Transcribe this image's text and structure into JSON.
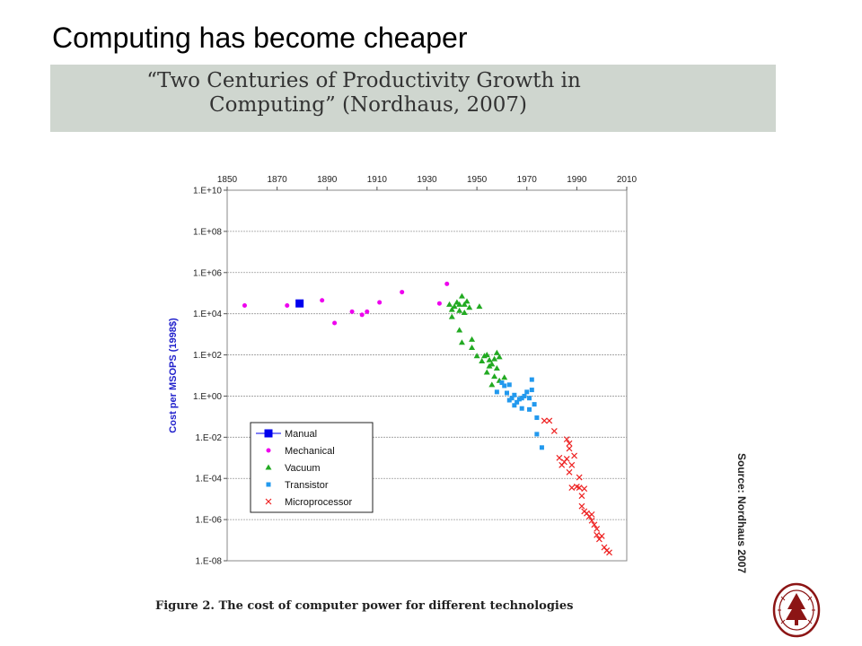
{
  "slide": {
    "title": "Computing has become cheaper",
    "banner_line1": "“Two Centuries of Productivity Growth in",
    "banner_line2": "Computing” (Nordhaus, 2007)",
    "caption_prefix": "Figure 2. ",
    "caption_text": "The cost of computer power for different technologies",
    "source": "Source: Nordhaus 2007",
    "logo": "stanford-seal-icon"
  },
  "chart_data": {
    "type": "scatter",
    "title": "",
    "xlabel": "",
    "ylabel": "Cost per MSOPS (1998$)",
    "xlim": [
      1850,
      2010
    ],
    "ylim_log10": [
      -8,
      10
    ],
    "y_scale": "log",
    "x_ticks": [
      "1850",
      "1870",
      "1890",
      "1910",
      "1930",
      "1950",
      "1970",
      "1990",
      "2010"
    ],
    "y_ticks": [
      "1.E+10",
      "1.E+08",
      "1.E+06",
      "1.E+04",
      "1.E+02",
      "1.E+00",
      "1.E-02",
      "1.E-04",
      "1.E-06",
      "1.E-08"
    ],
    "x_axis_position": "top",
    "grid": "horizontal",
    "legend_position": "bottom-left",
    "series": [
      {
        "name": "Manual",
        "marker": "square-line",
        "color": "#0000ee",
        "points": [
          [
            1879,
            4.5
          ]
        ]
      },
      {
        "name": "Mechanical",
        "marker": "circle",
        "color": "#ee00ee",
        "points": [
          [
            1857,
            4.4
          ],
          [
            1874,
            4.4
          ],
          [
            1888,
            4.65
          ],
          [
            1893,
            3.55
          ],
          [
            1900,
            4.1
          ],
          [
            1904,
            3.95
          ],
          [
            1906,
            4.1
          ],
          [
            1911,
            4.55
          ],
          [
            1920,
            5.05
          ],
          [
            1935,
            4.5
          ],
          [
            1938,
            5.45
          ]
        ]
      },
      {
        "name": "Vacuum",
        "marker": "triangle",
        "color": "#22aa22",
        "points": [
          [
            1939,
            4.45
          ],
          [
            1940,
            4.2
          ],
          [
            1940,
            3.85
          ],
          [
            1941,
            4.35
          ],
          [
            1942,
            4.55
          ],
          [
            1943,
            4.45
          ],
          [
            1943,
            4.15
          ],
          [
            1944,
            4.85
          ],
          [
            1945,
            4.45
          ],
          [
            1945,
            4.05
          ],
          [
            1946,
            4.6
          ],
          [
            1947,
            4.3
          ],
          [
            1951,
            4.35
          ],
          [
            1943,
            3.2
          ],
          [
            1944,
            2.6
          ],
          [
            1948,
            2.75
          ],
          [
            1948,
            2.35
          ],
          [
            1950,
            1.95
          ],
          [
            1952,
            1.7
          ],
          [
            1953,
            1.95
          ],
          [
            1954,
            2.0
          ],
          [
            1955,
            1.75
          ],
          [
            1956,
            1.55
          ],
          [
            1955,
            1.45
          ],
          [
            1958,
            2.1
          ],
          [
            1957,
            1.8
          ],
          [
            1954,
            1.15
          ],
          [
            1956,
            0.55
          ],
          [
            1957,
            0.95
          ],
          [
            1958,
            1.35
          ],
          [
            1959,
            0.75
          ],
          [
            1959,
            1.9
          ],
          [
            1961,
            0.9
          ]
        ]
      },
      {
        "name": "Transistor",
        "marker": "square",
        "color": "#2299ee",
        "points": [
          [
            1958,
            0.2
          ],
          [
            1960,
            0.65
          ],
          [
            1961,
            0.5
          ],
          [
            1962,
            0.15
          ],
          [
            1963,
            -0.2
          ],
          [
            1963,
            0.55
          ],
          [
            1964,
            -0.1
          ],
          [
            1965,
            0.05
          ],
          [
            1965,
            -0.45
          ],
          [
            1966,
            -0.3
          ],
          [
            1967,
            -0.15
          ],
          [
            1968,
            -0.1
          ],
          [
            1968,
            -0.6
          ],
          [
            1969,
            0.0
          ],
          [
            1970,
            0.2
          ],
          [
            1971,
            -0.1
          ],
          [
            1971,
            -0.65
          ],
          [
            1972,
            0.3
          ],
          [
            1972,
            0.8
          ],
          [
            1973,
            -0.4
          ],
          [
            1974,
            -1.05
          ],
          [
            1974,
            -1.85
          ],
          [
            1976,
            -2.5
          ]
        ]
      },
      {
        "name": "Microprocessor",
        "marker": "x",
        "color": "#ee2222",
        "points": [
          [
            1977,
            -1.2
          ],
          [
            1979,
            -1.2
          ],
          [
            1981,
            -1.7
          ],
          [
            1983,
            -3.0
          ],
          [
            1984,
            -3.35
          ],
          [
            1985,
            -3.2
          ],
          [
            1986,
            -3.05
          ],
          [
            1986,
            -2.1
          ],
          [
            1987,
            -2.3
          ],
          [
            1987,
            -2.55
          ],
          [
            1987,
            -3.7
          ],
          [
            1988,
            -4.45
          ],
          [
            1988,
            -3.35
          ],
          [
            1989,
            -2.9
          ],
          [
            1990,
            -4.4
          ],
          [
            1991,
            -3.95
          ],
          [
            1991,
            -4.45
          ],
          [
            1992,
            -4.85
          ],
          [
            1992,
            -5.35
          ],
          [
            1993,
            -4.5
          ],
          [
            1993,
            -5.6
          ],
          [
            1994,
            -5.7
          ],
          [
            1995,
            -5.85
          ],
          [
            1996,
            -5.75
          ],
          [
            1996,
            -6.05
          ],
          [
            1997,
            -6.25
          ],
          [
            1998,
            -6.45
          ],
          [
            1998,
            -6.75
          ],
          [
            1999,
            -6.95
          ],
          [
            2000,
            -6.8
          ],
          [
            2001,
            -7.35
          ],
          [
            2002,
            -7.5
          ],
          [
            2003,
            -7.6
          ]
        ]
      }
    ]
  }
}
